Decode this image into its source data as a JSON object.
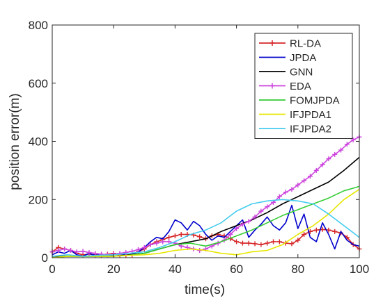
{
  "chart_data": {
    "type": "line",
    "xlabel": "time(s)",
    "ylabel": "position error(m)",
    "xlim": [
      0,
      100
    ],
    "ylim": [
      0,
      800
    ],
    "xticks": [
      0,
      20,
      40,
      60,
      80,
      100
    ],
    "yticks": [
      0,
      200,
      400,
      600,
      800
    ],
    "grid": false,
    "legend_position": "top-right",
    "series": [
      {
        "name": "RL-DA",
        "color": "#d62728",
        "marker": "plus",
        "x": [
          0,
          2,
          4,
          6,
          8,
          10,
          12,
          14,
          16,
          18,
          20,
          22,
          24,
          26,
          28,
          30,
          32,
          34,
          36,
          38,
          40,
          42,
          44,
          46,
          48,
          50,
          52,
          54,
          56,
          58,
          60,
          62,
          64,
          66,
          68,
          70,
          72,
          74,
          76,
          78,
          80,
          82,
          84,
          86,
          88,
          90,
          92,
          94,
          96,
          98,
          100
        ],
        "y": [
          20,
          35,
          30,
          25,
          15,
          10,
          12,
          10,
          8,
          12,
          15,
          10,
          8,
          10,
          20,
          30,
          45,
          55,
          62,
          70,
          75,
          80,
          80,
          78,
          72,
          65,
          75,
          80,
          75,
          65,
          55,
          50,
          50,
          48,
          45,
          50,
          55,
          55,
          50,
          48,
          60,
          80,
          90,
          95,
          97,
          95,
          90,
          85,
          70,
          45,
          30
        ]
      },
      {
        "name": "JPDA",
        "color": "#0000cc",
        "marker": "none",
        "x": [
          0,
          2,
          4,
          6,
          8,
          10,
          12,
          14,
          16,
          18,
          20,
          22,
          24,
          26,
          28,
          30,
          32,
          34,
          36,
          38,
          40,
          42,
          44,
          46,
          48,
          50,
          52,
          54,
          56,
          58,
          60,
          62,
          64,
          66,
          68,
          70,
          72,
          74,
          76,
          78,
          80,
          82,
          84,
          86,
          88,
          90,
          92,
          94,
          96,
          98,
          100
        ],
        "y": [
          10,
          20,
          15,
          25,
          10,
          5,
          15,
          8,
          12,
          5,
          10,
          15,
          8,
          12,
          20,
          35,
          55,
          70,
          65,
          90,
          130,
          120,
          95,
          125,
          110,
          80,
          60,
          75,
          70,
          90,
          110,
          130,
          70,
          95,
          115,
          140,
          110,
          95,
          120,
          180,
          100,
          150,
          70,
          55,
          120,
          80,
          30,
          90,
          60,
          45,
          40
        ]
      },
      {
        "name": "GNN",
        "color": "#000000",
        "marker": "none",
        "x": [
          0,
          5,
          10,
          15,
          20,
          25,
          30,
          35,
          40,
          45,
          50,
          55,
          60,
          65,
          70,
          75,
          80,
          85,
          90,
          95,
          100
        ],
        "y": [
          5,
          5,
          5,
          5,
          5,
          10,
          15,
          30,
          45,
          55,
          65,
          90,
          110,
          130,
          155,
          185,
          210,
          235,
          260,
          300,
          345
        ]
      },
      {
        "name": "EDA",
        "color": "#cc44dd",
        "marker": "plus",
        "x": [
          0,
          2,
          4,
          6,
          8,
          10,
          12,
          14,
          16,
          18,
          20,
          22,
          24,
          26,
          28,
          30,
          32,
          34,
          36,
          38,
          40,
          42,
          44,
          46,
          48,
          50,
          52,
          54,
          56,
          58,
          60,
          62,
          64,
          66,
          68,
          70,
          72,
          74,
          76,
          78,
          80,
          82,
          84,
          86,
          88,
          90,
          92,
          94,
          96,
          98,
          100
        ],
        "y": [
          20,
          25,
          30,
          25,
          20,
          22,
          18,
          15,
          12,
          10,
          12,
          15,
          18,
          22,
          28,
          35,
          45,
          50,
          55,
          55,
          50,
          40,
          35,
          30,
          25,
          30,
          40,
          50,
          60,
          80,
          100,
          115,
          125,
          140,
          160,
          175,
          190,
          210,
          225,
          235,
          250,
          265,
          280,
          300,
          320,
          340,
          355,
          370,
          390,
          405,
          415
        ]
      },
      {
        "name": "FOMJPDA",
        "color": "#33cc33",
        "marker": "none",
        "x": [
          0,
          5,
          10,
          15,
          20,
          25,
          30,
          35,
          40,
          45,
          50,
          55,
          60,
          65,
          70,
          75,
          80,
          85,
          90,
          95,
          100
        ],
        "y": [
          0,
          5,
          5,
          5,
          5,
          8,
          15,
          30,
          45,
          50,
          40,
          55,
          75,
          95,
          120,
          145,
          165,
          185,
          205,
          230,
          245
        ]
      },
      {
        "name": "IFJPDA1",
        "color": "#e6e600",
        "marker": "none",
        "x": [
          0,
          5,
          10,
          15,
          20,
          25,
          30,
          35,
          40,
          45,
          50,
          55,
          60,
          65,
          70,
          75,
          80,
          85,
          90,
          95,
          100
        ],
        "y": [
          0,
          5,
          5,
          5,
          5,
          8,
          10,
          15,
          25,
          30,
          25,
          15,
          10,
          20,
          25,
          45,
          80,
          110,
          150,
          200,
          235
        ]
      },
      {
        "name": "IFJPDA2",
        "color": "#44ccee",
        "marker": "none",
        "x": [
          0,
          5,
          10,
          15,
          20,
          25,
          30,
          35,
          40,
          45,
          50,
          55,
          60,
          65,
          70,
          75,
          80,
          85,
          90,
          95,
          100
        ],
        "y": [
          5,
          10,
          5,
          8,
          10,
          15,
          20,
          35,
          55,
          80,
          95,
          120,
          160,
          185,
          195,
          200,
          195,
          185,
          150,
          110,
          70
        ]
      }
    ]
  }
}
